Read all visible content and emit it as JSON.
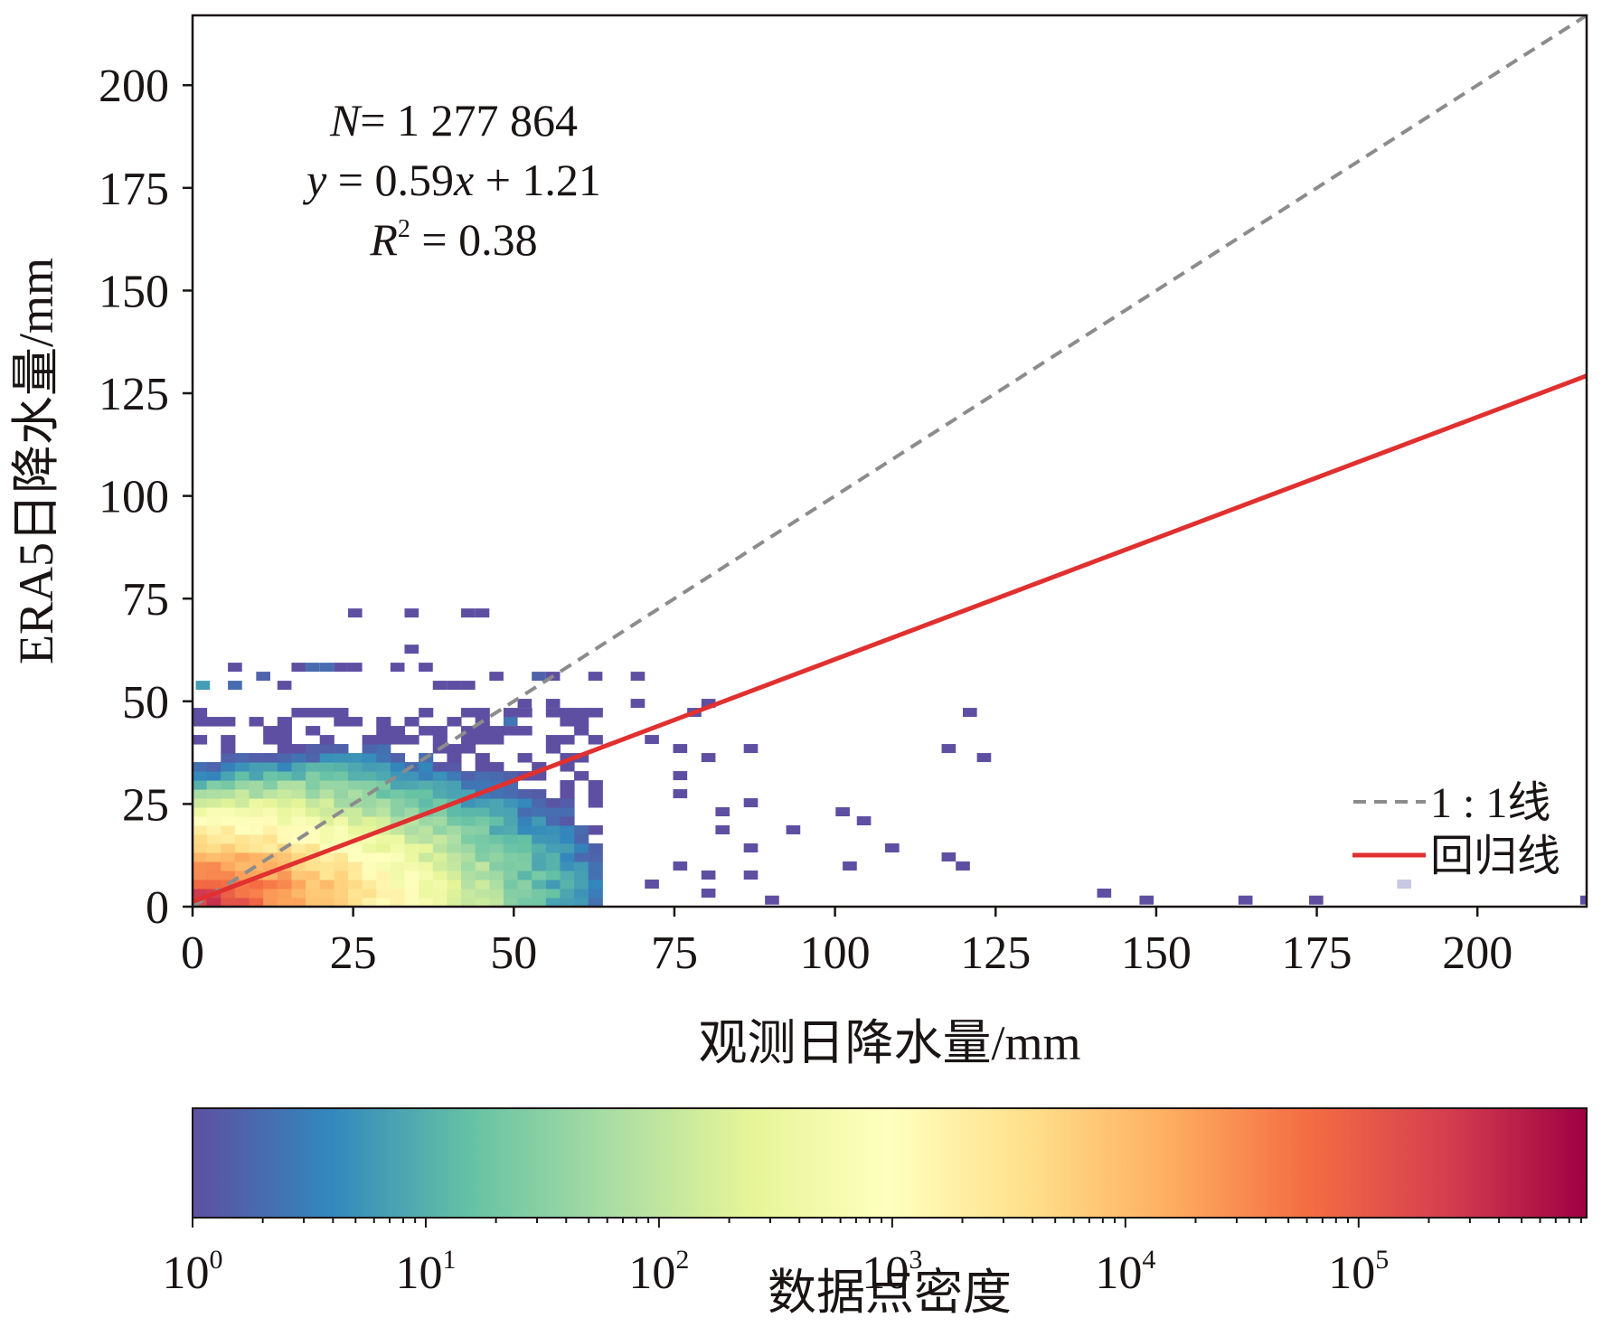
{
  "chart_data": {
    "type": "heatmap",
    "subtype": "2d-density-histogram",
    "xlabel": "观测日降水量/mm",
    "ylabel": "ERA5日降水量/mm",
    "xlim": [
      0,
      217
    ],
    "ylim": [
      0,
      217
    ],
    "xticks": [
      0,
      25,
      50,
      75,
      100,
      125,
      150,
      175,
      200
    ],
    "yticks": [
      0,
      25,
      50,
      75,
      100,
      125,
      150,
      175,
      200
    ],
    "bin_size": 2.2,
    "annotations": {
      "n_label": "N",
      "n_value": "= 1 277 864",
      "fit_y": "y",
      "fit_eq_mid": " = 0.59",
      "fit_x": "x",
      "fit_eq_end": " + 1.21",
      "r2_label": "R",
      "r2_sup": "2",
      "r2_value": " = 0.38"
    },
    "regression": {
      "slope": 0.59,
      "intercept": 1.21,
      "r2": 0.38,
      "n": 1277864,
      "color": "#e03030"
    },
    "identity_line": {
      "slope": 1,
      "intercept": 0,
      "color": "#8c8c8c",
      "style": "dashed"
    },
    "legend": {
      "position": "bottom-right",
      "entries": [
        {
          "label": "1 : 1线",
          "style": "dashed",
          "color": "#8c8c8c"
        },
        {
          "label": "回归线",
          "style": "solid",
          "color": "#e03030"
        }
      ]
    },
    "colorbar": {
      "label": "数据点密度",
      "scale": "log",
      "range": [
        1,
        950000
      ],
      "ticks": [
        {
          "base": "10",
          "exp": "0",
          "value": 1
        },
        {
          "base": "10",
          "exp": "1",
          "value": 10
        },
        {
          "base": "10",
          "exp": "2",
          "value": 100
        },
        {
          "base": "10",
          "exp": "3",
          "value": 1000
        },
        {
          "base": "10",
          "exp": "4",
          "value": 10000
        },
        {
          "base": "10",
          "exp": "5",
          "value": 100000
        }
      ],
      "colormap": "Spectral_r",
      "stops": [
        "#5e4fa2",
        "#3288bd",
        "#66c2a5",
        "#abdda4",
        "#e6f598",
        "#ffffbf",
        "#fee08b",
        "#fdae61",
        "#f46d43",
        "#d53e4f",
        "#9e0142"
      ]
    },
    "density_core": {
      "description": "dense region near origin; log10(count) decreases with distance",
      "peak_log10_count": 5.5,
      "center": [
        0,
        0
      ],
      "x_decay_per_mm": 0.085,
      "y_decay_per_mm": 0.135,
      "x_extent": 62,
      "y_extent": 48
    },
    "sparse_bins": [
      [
        24.2,
        70.4,
        0
      ],
      [
        33,
        70.4,
        0
      ],
      [
        41.8,
        70.4,
        0
      ],
      [
        44,
        70.4,
        0
      ],
      [
        33,
        61.6,
        0
      ],
      [
        5.5,
        57.2,
        0
      ],
      [
        15.4,
        57.2,
        0
      ],
      [
        17.6,
        57.2,
        0.3
      ],
      [
        19.8,
        57.2,
        0.3
      ],
      [
        22,
        57.2,
        0
      ],
      [
        24.2,
        57.2,
        0
      ],
      [
        30.8,
        57.2,
        0
      ],
      [
        35.2,
        57.2,
        0
      ],
      [
        46.2,
        55,
        0
      ],
      [
        52.8,
        55,
        0.2
      ],
      [
        55,
        55,
        0
      ],
      [
        61.6,
        55,
        0
      ],
      [
        68.2,
        55,
        0
      ],
      [
        9.9,
        55,
        0.2
      ],
      [
        0.5,
        52.8,
        0.8
      ],
      [
        5.5,
        52.8,
        0.3
      ],
      [
        13.2,
        52.8,
        0
      ],
      [
        37.4,
        52.8,
        0
      ],
      [
        39.6,
        52.8,
        0
      ],
      [
        41.8,
        52.8,
        0
      ],
      [
        50.6,
        48.4,
        0
      ],
      [
        55,
        48.4,
        0
      ],
      [
        68.2,
        48.4,
        0
      ],
      [
        79.2,
        48.4,
        0
      ],
      [
        119.9,
        46.2,
        0
      ],
      [
        77,
        46.2,
        0
      ],
      [
        57.2,
        44,
        0
      ],
      [
        48.4,
        44,
        0.4
      ],
      [
        70.4,
        39.6,
        0
      ],
      [
        79.2,
        35.2,
        0
      ],
      [
        85.8,
        37.4,
        0
      ],
      [
        74.8,
        37.4,
        0
      ],
      [
        116.6,
        37.4,
        0
      ],
      [
        122.1,
        35.2,
        0
      ],
      [
        74.8,
        30.8,
        0
      ],
      [
        74.8,
        26.4,
        0
      ],
      [
        85.8,
        24.2,
        0
      ],
      [
        81.4,
        17.6,
        0
      ],
      [
        81.4,
        22,
        0
      ],
      [
        92.4,
        17.6,
        0
      ],
      [
        100.1,
        22,
        0
      ],
      [
        103.4,
        19.8,
        0
      ],
      [
        107.8,
        13.2,
        0
      ],
      [
        116.6,
        11,
        0
      ],
      [
        101.2,
        8.8,
        0
      ],
      [
        118.8,
        8.8,
        0
      ],
      [
        85.8,
        13.2,
        0
      ],
      [
        74.8,
        8.8,
        0
      ],
      [
        79.2,
        6.6,
        0
      ],
      [
        85.8,
        6.6,
        0
      ],
      [
        70.4,
        4.4,
        0
      ],
      [
        79.2,
        2.2,
        0
      ],
      [
        89.1,
        0.5,
        0
      ],
      [
        140.8,
        2.2,
        0
      ],
      [
        147.4,
        0.5,
        0
      ],
      [
        162.8,
        0.5,
        0
      ],
      [
        173.8,
        0.5,
        0
      ],
      [
        216,
        0.5,
        0
      ],
      [
        187.5,
        4.4,
        -1
      ]
    ]
  }
}
